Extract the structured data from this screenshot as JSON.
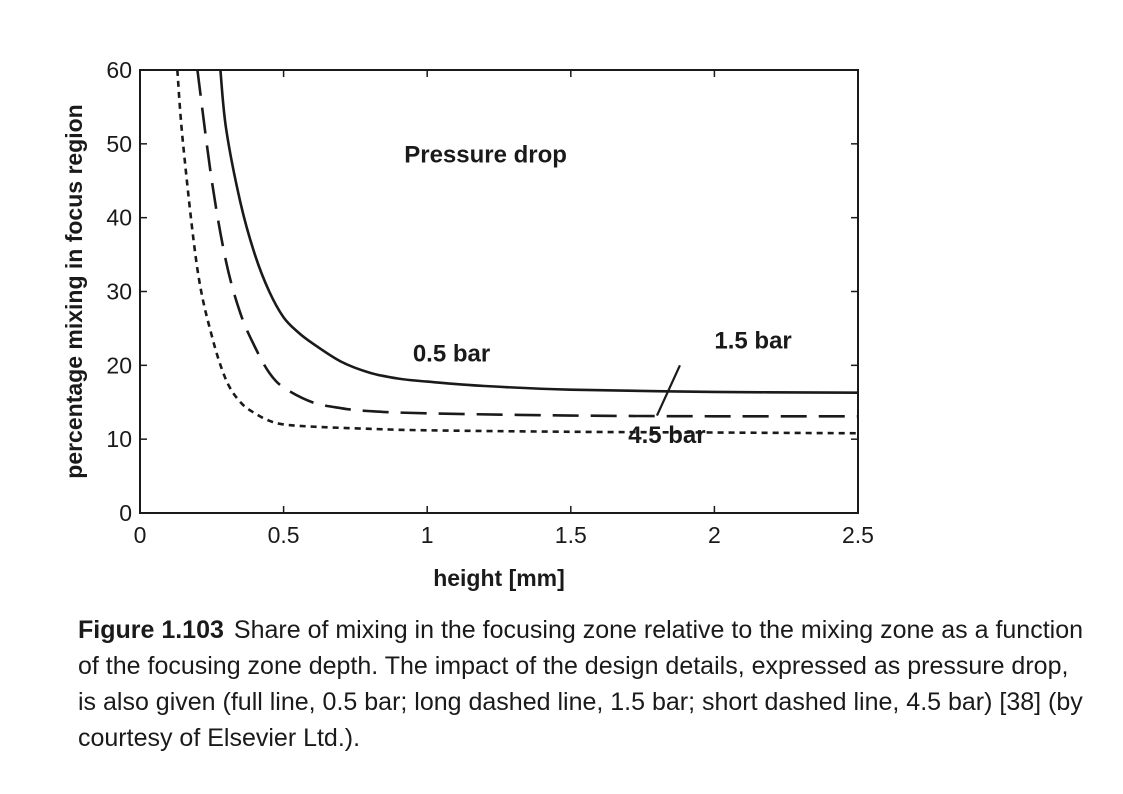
{
  "chart_data": {
    "type": "line",
    "title": "Pressure drop",
    "xlabel": "height [mm]",
    "ylabel": "percentage mixing in focus region",
    "xlim": [
      0,
      2.5
    ],
    "ylim": [
      0,
      60
    ],
    "xticks": [
      0,
      0.5,
      1,
      1.5,
      2,
      2.5
    ],
    "yticks": [
      0,
      10,
      20,
      30,
      40,
      50,
      60
    ],
    "grid": false,
    "legend": "none",
    "series": [
      {
        "name": "0.5 bar",
        "style": "solid",
        "x": [
          0.28,
          0.3,
          0.35,
          0.4,
          0.45,
          0.5,
          0.55,
          0.6,
          0.7,
          0.8,
          0.9,
          1.0,
          1.2,
          1.5,
          2.0,
          2.5
        ],
        "y": [
          60,
          52,
          42,
          35,
          30,
          26.5,
          24.5,
          23,
          20.5,
          19,
          18.2,
          17.8,
          17.2,
          16.7,
          16.4,
          16.3
        ]
      },
      {
        "name": "1.5 bar",
        "style": "long-dash",
        "x": [
          0.2,
          0.25,
          0.3,
          0.35,
          0.4,
          0.45,
          0.5,
          0.6,
          0.7,
          0.8,
          1.0,
          1.5,
          2.0,
          2.5
        ],
        "y": [
          60,
          45,
          34,
          27,
          22.5,
          19,
          17,
          15,
          14.2,
          13.8,
          13.5,
          13.2,
          13.1,
          13.1
        ]
      },
      {
        "name": "4.5 bar",
        "style": "short-dash",
        "x": [
          0.13,
          0.15,
          0.2,
          0.25,
          0.3,
          0.35,
          0.4,
          0.45,
          0.5,
          0.6,
          0.8,
          1.0,
          1.5,
          2.0,
          2.5
        ],
        "y": [
          60,
          50,
          33,
          24,
          18,
          15,
          13.5,
          12.5,
          12,
          11.7,
          11.4,
          11.2,
          11,
          10.9,
          10.8
        ]
      }
    ],
    "annotations": [
      {
        "text": "0.5 bar",
        "x": 0.95,
        "y": 20.5
      },
      {
        "text": "1.5 bar",
        "x": 2.0,
        "y": 22.3
      },
      {
        "text": "4.5 bar",
        "x": 1.7,
        "y": 9.5
      }
    ],
    "pointer": {
      "from": [
        1.88,
        20
      ],
      "to": [
        1.8,
        13.2
      ]
    }
  },
  "caption": {
    "label": "Figure 1.103",
    "text": "Share of mixing in the focusing zone relative to the mixing zone as a function of the focusing zone depth. The impact of the design details, expressed as pressure drop, is also given (full line, 0.5 bar; long dashed line, 1.5 bar; short dashed line, 4.5 bar) [38] (by courtesy of Elsevier Ltd.)."
  }
}
